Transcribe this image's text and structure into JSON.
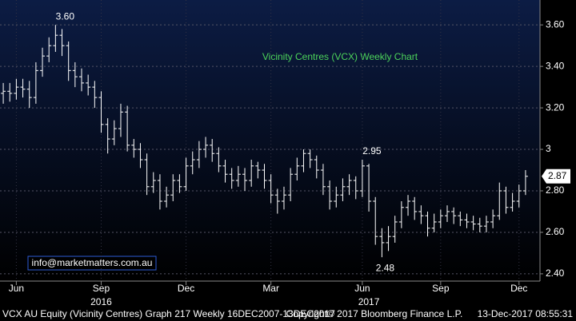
{
  "chart_data": {
    "type": "ohlc",
    "title": "Vicinity Centres (VCX) Weekly Chart",
    "watermark": "info@marketmatters.com.au",
    "footer": {
      "left": "VCX AU Equity (Vicinity Centres) Graph 217  Weekly 16DEC2007-13DEC2017",
      "center": "Copyright© 2017 Bloomberg Finance L.P.",
      "right": "13-Dec-2017 08:55:31"
    },
    "categories": [
      null,
      null,
      "Jun",
      null,
      null,
      null,
      null,
      null,
      null,
      null,
      null,
      null,
      null,
      null,
      null,
      "Sep",
      null,
      null,
      null,
      null,
      null,
      null,
      null,
      null,
      null,
      null,
      null,
      null,
      "Dec",
      null,
      null,
      null,
      null,
      null,
      null,
      null,
      null,
      null,
      null,
      null,
      null,
      "Mar",
      null,
      null,
      null,
      null,
      null,
      null,
      null,
      null,
      null,
      null,
      null,
      null,
      null,
      "Jun",
      null,
      null,
      null,
      null,
      null,
      null,
      null,
      null,
      null,
      null,
      null,
      "Sep",
      null,
      null,
      null,
      null,
      null,
      null,
      null,
      null,
      null,
      null,
      null,
      "Dec",
      null
    ],
    "years": [
      null,
      null,
      null,
      null,
      null,
      null,
      null,
      null,
      null,
      null,
      null,
      null,
      null,
      null,
      null,
      "2016",
      null,
      null,
      null,
      null,
      null,
      null,
      null,
      null,
      null,
      null,
      null,
      null,
      null,
      null,
      null,
      null,
      null,
      null,
      null,
      null,
      null,
      null,
      null,
      null,
      null,
      null,
      null,
      null,
      null,
      null,
      null,
      null,
      null,
      null,
      null,
      null,
      null,
      null,
      null,
      null,
      "2017",
      null,
      null,
      null,
      null,
      null,
      null,
      null,
      null,
      null,
      null,
      null,
      null,
      null,
      null,
      null,
      null,
      null,
      null,
      null,
      null,
      null,
      null,
      null,
      null
    ],
    "open": [
      3.27,
      3.28,
      3.27,
      3.3,
      3.29,
      3.25,
      3.38,
      3.45,
      3.5,
      3.55,
      3.5,
      3.38,
      3.35,
      3.32,
      3.3,
      3.25,
      3.12,
      3.05,
      3.1,
      3.18,
      3.02,
      3.0,
      2.95,
      2.82,
      2.85,
      2.75,
      2.78,
      2.85,
      2.82,
      2.92,
      2.95,
      3.0,
      3.02,
      2.98,
      2.92,
      2.88,
      2.85,
      2.88,
      2.85,
      2.92,
      2.9,
      2.85,
      2.78,
      2.75,
      2.78,
      2.88,
      2.92,
      2.98,
      2.95,
      2.9,
      2.82,
      2.75,
      2.78,
      2.82,
      2.85,
      2.8,
      2.92,
      2.75,
      2.58,
      2.55,
      2.58,
      2.65,
      2.72,
      2.75,
      2.7,
      2.68,
      2.62,
      2.65,
      2.68,
      2.7,
      2.68,
      2.66,
      2.65,
      2.64,
      2.63,
      2.65,
      2.68,
      2.8,
      2.72,
      2.75,
      2.8
    ],
    "high": [
      3.32,
      3.32,
      3.34,
      3.34,
      3.33,
      3.42,
      3.49,
      3.54,
      3.6,
      3.58,
      3.52,
      3.42,
      3.39,
      3.36,
      3.33,
      3.28,
      3.15,
      3.14,
      3.22,
      3.21,
      3.05,
      3.03,
      2.98,
      2.89,
      2.88,
      2.82,
      2.88,
      2.88,
      2.96,
      2.99,
      3.04,
      3.06,
      3.05,
      3.01,
      2.95,
      2.91,
      2.92,
      2.91,
      2.95,
      2.94,
      2.93,
      2.88,
      2.81,
      2.82,
      2.91,
      2.96,
      3.0,
      3.0,
      2.97,
      2.93,
      2.85,
      2.82,
      2.86,
      2.88,
      2.87,
      2.95,
      2.93,
      2.77,
      2.62,
      2.63,
      2.68,
      2.75,
      2.78,
      2.77,
      2.73,
      2.7,
      2.69,
      2.71,
      2.73,
      2.72,
      2.7,
      2.69,
      2.68,
      2.67,
      2.68,
      2.71,
      2.84,
      2.82,
      2.79,
      2.83,
      2.9
    ],
    "low": [
      3.22,
      3.23,
      3.24,
      3.25,
      3.2,
      3.22,
      3.35,
      3.42,
      3.47,
      3.45,
      3.33,
      3.3,
      3.28,
      3.26,
      3.2,
      3.08,
      2.98,
      3.02,
      3.06,
      2.99,
      2.96,
      2.91,
      2.78,
      2.79,
      2.71,
      2.72,
      2.75,
      2.79,
      2.8,
      2.88,
      2.91,
      2.96,
      2.94,
      2.89,
      2.84,
      2.81,
      2.82,
      2.8,
      2.82,
      2.86,
      2.81,
      2.74,
      2.69,
      2.71,
      2.75,
      2.85,
      2.89,
      2.91,
      2.86,
      2.78,
      2.71,
      2.72,
      2.75,
      2.78,
      2.76,
      2.77,
      2.7,
      2.54,
      2.48,
      2.51,
      2.55,
      2.62,
      2.68,
      2.66,
      2.64,
      2.58,
      2.6,
      2.62,
      2.65,
      2.64,
      2.63,
      2.62,
      2.61,
      2.6,
      2.6,
      2.62,
      2.66,
      2.69,
      2.7,
      2.72,
      2.78
    ],
    "close": [
      3.28,
      3.27,
      3.3,
      3.29,
      3.25,
      3.38,
      3.45,
      3.5,
      3.55,
      3.5,
      3.38,
      3.35,
      3.32,
      3.3,
      3.25,
      3.12,
      3.05,
      3.1,
      3.18,
      3.02,
      3.0,
      2.95,
      2.82,
      2.85,
      2.75,
      2.78,
      2.85,
      2.82,
      2.92,
      2.95,
      3.0,
      3.02,
      2.98,
      2.92,
      2.88,
      2.85,
      2.88,
      2.85,
      2.92,
      2.9,
      2.85,
      2.78,
      2.75,
      2.78,
      2.88,
      2.92,
      2.98,
      2.95,
      2.9,
      2.82,
      2.75,
      2.78,
      2.82,
      2.85,
      2.8,
      2.92,
      2.75,
      2.58,
      2.55,
      2.58,
      2.65,
      2.72,
      2.75,
      2.7,
      2.68,
      2.62,
      2.65,
      2.68,
      2.7,
      2.68,
      2.66,
      2.65,
      2.64,
      2.63,
      2.65,
      2.68,
      2.8,
      2.72,
      2.75,
      2.8,
      2.87
    ],
    "high_labels": [
      null,
      null,
      null,
      null,
      null,
      null,
      null,
      null,
      "3.60",
      null,
      null,
      null,
      null,
      null,
      null,
      null,
      null,
      null,
      null,
      null,
      null,
      null,
      null,
      null,
      null,
      null,
      null,
      null,
      null,
      null,
      null,
      null,
      null,
      null,
      null,
      null,
      null,
      null,
      null,
      null,
      null,
      null,
      null,
      null,
      null,
      null,
      null,
      null,
      null,
      null,
      null,
      null,
      null,
      null,
      null,
      "2.95",
      null,
      null,
      null,
      null,
      null,
      null,
      null,
      null,
      null,
      null,
      null,
      null,
      null,
      null,
      null,
      null,
      null,
      null,
      null,
      null,
      null,
      null,
      null,
      null,
      null
    ],
    "low_labels": [
      null,
      null,
      null,
      null,
      null,
      null,
      null,
      null,
      null,
      null,
      null,
      null,
      null,
      null,
      null,
      null,
      null,
      null,
      null,
      null,
      null,
      null,
      null,
      null,
      null,
      null,
      null,
      null,
      null,
      null,
      null,
      null,
      null,
      null,
      null,
      null,
      null,
      null,
      null,
      null,
      null,
      null,
      null,
      null,
      null,
      null,
      null,
      null,
      null,
      null,
      null,
      null,
      null,
      null,
      null,
      null,
      null,
      null,
      "2.48",
      null,
      null,
      null,
      null,
      null,
      null,
      null,
      null,
      null,
      null,
      null,
      null,
      null,
      null,
      null,
      null,
      null,
      null,
      null,
      null,
      null,
      null,
      null
    ],
    "close_labels": [
      null,
      null,
      null,
      null,
      null,
      null,
      null,
      null,
      null,
      null,
      null,
      null,
      null,
      null,
      null,
      null,
      null,
      null,
      null,
      null,
      null,
      null,
      null,
      null,
      null,
      null,
      null,
      null,
      null,
      null,
      null,
      null,
      null,
      null,
      null,
      null,
      null,
      null,
      null,
      null,
      null,
      null,
      null,
      null,
      null,
      null,
      null,
      null,
      null,
      null,
      null,
      null,
      null,
      null,
      null,
      null,
      null,
      null,
      null,
      null,
      null,
      null,
      null,
      null,
      null,
      null,
      null,
      null,
      null,
      null,
      null,
      null,
      null,
      null,
      null,
      null,
      null,
      null,
      null,
      null,
      "2.87"
    ],
    "color": "#ffffff",
    "title_color": "#4cd35a",
    "ylim": [
      2.365,
      3.72
    ],
    "yticks": [
      {
        "value": 2.4,
        "label": "2.40"
      },
      {
        "value": 2.6,
        "label": "2.60"
      },
      {
        "value": 2.8,
        "label": "2.80"
      },
      3,
      {
        "value": 3.2,
        "label": "3.20"
      },
      {
        "value": 3.4,
        "label": "3.40"
      },
      {
        "value": 3.6,
        "label": "3.60"
      }
    ],
    "grid": true
  }
}
